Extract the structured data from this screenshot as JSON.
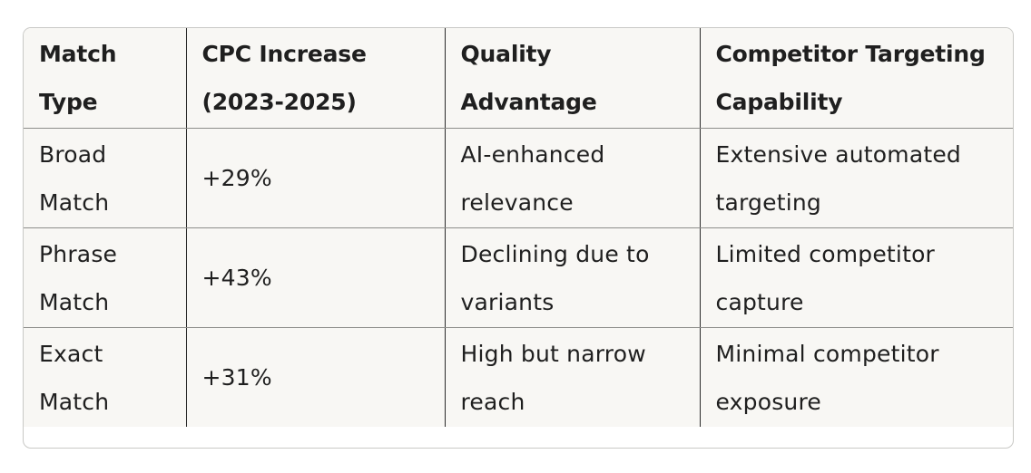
{
  "table": {
    "headers": [
      [
        "Match",
        "Type"
      ],
      [
        "CPC Increase",
        "(2023-2025)"
      ],
      [
        "Quality",
        "Advantage"
      ],
      [
        "Competitor Targeting",
        "Capability"
      ]
    ],
    "rows": [
      {
        "match_type": [
          "Broad",
          "Match"
        ],
        "cpc_increase": "+29%",
        "quality_advantage": [
          "AI-enhanced",
          "relevance"
        ],
        "competitor_targeting": [
          "Extensive automated",
          "targeting"
        ]
      },
      {
        "match_type": [
          "Phrase",
          "Match"
        ],
        "cpc_increase": "+43%",
        "quality_advantage": [
          "Declining due to",
          "variants"
        ],
        "competitor_targeting": [
          "Limited competitor",
          "capture"
        ]
      },
      {
        "match_type": [
          "Exact",
          "Match"
        ],
        "cpc_increase": "+31%",
        "quality_advantage": [
          "High but narrow",
          "reach"
        ],
        "competitor_targeting": [
          "Minimal competitor",
          "exposure"
        ]
      }
    ]
  }
}
